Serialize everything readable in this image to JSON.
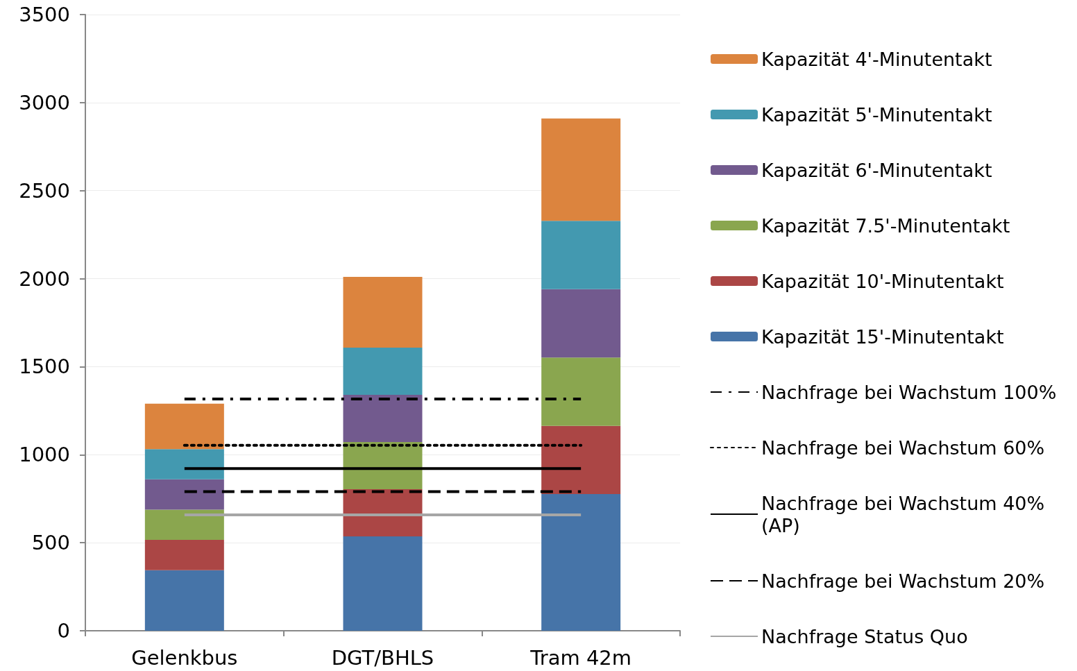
{
  "chart_data": {
    "type": "bar",
    "stacked": true,
    "categories": [
      "Gelenkbus",
      "DGT/BHLS",
      "Tram 42m"
    ],
    "ylim": [
      0,
      3500
    ],
    "yticks": [
      0,
      500,
      1000,
      1500,
      2000,
      2500,
      3000,
      3500
    ],
    "grid": "y",
    "legend": "right",
    "marker": "none",
    "series": [
      {
        "name": "Kapazität 15'-Minutentakt",
        "color": "#4674a8",
        "values": [
          344,
          536,
          776
        ]
      },
      {
        "name": "Kapazität 10'-Minutentakt",
        "color": "#ab4645",
        "values": [
          172,
          268,
          388
        ]
      },
      {
        "name": "Kapazität 7.5'-Minutentakt",
        "color": "#8aa64f",
        "values": [
          172,
          268,
          388
        ]
      },
      {
        "name": "Kapazität 6'-Minutentakt",
        "color": "#725a8e",
        "values": [
          172,
          268,
          388
        ]
      },
      {
        "name": "Kapazität 5'-Minutentakt",
        "color": "#4399b0",
        "values": [
          172,
          268,
          388
        ]
      },
      {
        "name": "Kapazität 4'-Minutentakt",
        "color": "#dc843e",
        "values": [
          258,
          402,
          582
        ]
      },
      {
        "name": "Nachfrage bei Wachstum 100%",
        "type": "line",
        "color": "#000000",
        "line_style": "dashdot",
        "values": [
          1316,
          1316,
          1316
        ]
      },
      {
        "name": "Nachfrage bei Wachstum 60%",
        "type": "line",
        "color": "#000000",
        "line_style": "dotted",
        "values": [
          1053,
          1053,
          1053
        ]
      },
      {
        "name": "Nachfrage bei Wachstum 40% (AP)",
        "type": "line",
        "color": "#000000",
        "line_style": "solid",
        "values": [
          921,
          921,
          921
        ]
      },
      {
        "name": "Nachfrage bei Wachstum 20%",
        "type": "line",
        "color": "#000000",
        "line_style": "dashed",
        "values": [
          790,
          790,
          790
        ]
      },
      {
        "name": "Nachfrage Status Quo",
        "type": "line",
        "color": "#a6a6a6",
        "line_style": "solid",
        "values": [
          658,
          658,
          658
        ]
      }
    ]
  }
}
